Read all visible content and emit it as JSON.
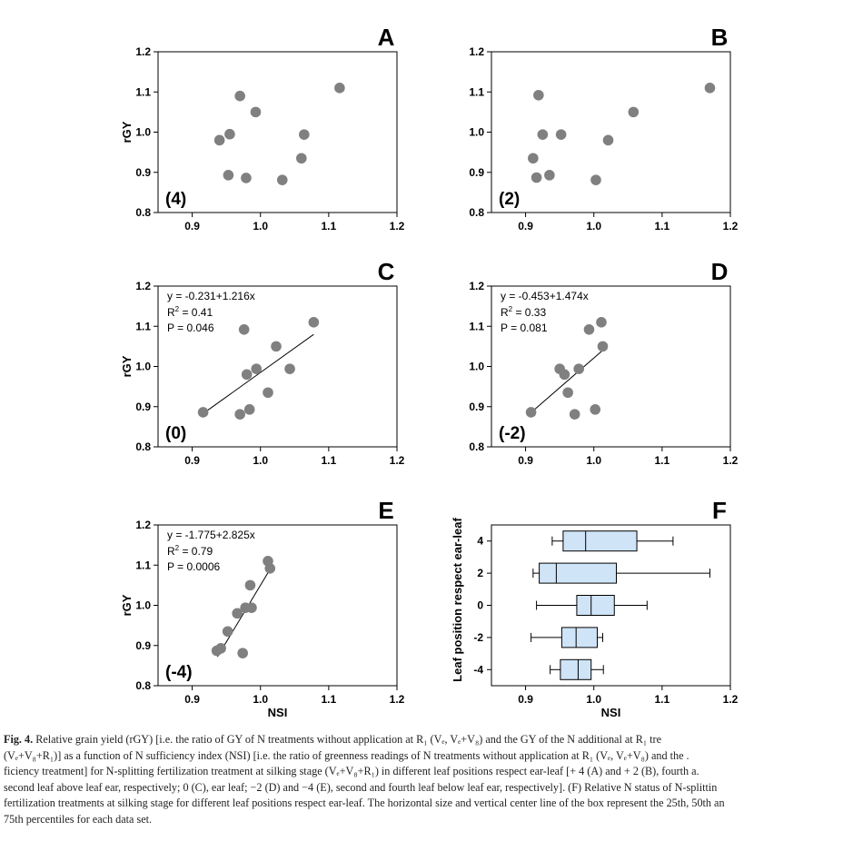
{
  "chart_data": [
    {
      "type": "scatter",
      "panel": "A",
      "annotation": "(4)",
      "ylabel": "rGY",
      "xlabel": "",
      "xlim": [
        0.85,
        1.2
      ],
      "ylim": [
        0.8,
        1.2
      ],
      "xticks": [
        "0.9",
        "1.0",
        "1.1",
        "1.2"
      ],
      "yticks": [
        "0.8",
        "0.9",
        "1.0",
        "1.1",
        "1.2"
      ],
      "points": [
        [
          0.94,
          0.98
        ],
        [
          0.955,
          0.995
        ],
        [
          0.97,
          1.09
        ],
        [
          0.953,
          0.893
        ],
        [
          0.979,
          0.886
        ],
        [
          0.993,
          1.05
        ],
        [
          1.032,
          0.881
        ],
        [
          1.06,
          0.935
        ],
        [
          1.064,
          0.994
        ],
        [
          1.116,
          1.11
        ]
      ]
    },
    {
      "type": "scatter",
      "panel": "B",
      "annotation": "(2)",
      "ylabel": "",
      "xlabel": "",
      "xlim": [
        0.85,
        1.2
      ],
      "ylim": [
        0.8,
        1.2
      ],
      "xticks": [
        "0.9",
        "1.0",
        "1.1",
        "1.2"
      ],
      "yticks": [
        "0.8",
        "0.9",
        "1.0",
        "1.1",
        "1.2"
      ],
      "points": [
        [
          0.911,
          0.935
        ],
        [
          0.916,
          0.887
        ],
        [
          0.919,
          1.092
        ],
        [
          0.925,
          0.994
        ],
        [
          0.935,
          0.893
        ],
        [
          0.952,
          0.994
        ],
        [
          1.003,
          0.881
        ],
        [
          1.021,
          0.98
        ],
        [
          1.058,
          1.05
        ],
        [
          1.17,
          1.11
        ]
      ]
    },
    {
      "type": "scatter",
      "panel": "C",
      "annotation": "(0)",
      "ylabel": "rGY",
      "xlabel": "",
      "xlim": [
        0.85,
        1.2
      ],
      "ylim": [
        0.8,
        1.2
      ],
      "xticks": [
        "0.9",
        "1.0",
        "1.1",
        "1.2"
      ],
      "yticks": [
        "0.8",
        "0.9",
        "1.0",
        "1.1",
        "1.2"
      ],
      "equation": "y = -0.231+1.216x",
      "r2_label": "R",
      "r2_value": " = 0.41",
      "p_label": "P = 0.046",
      "intercept": -0.231,
      "slope": 1.216,
      "fit_range": [
        0.916,
        1.078
      ],
      "points": [
        [
          0.916,
          0.886
        ],
        [
          0.97,
          0.881
        ],
        [
          0.976,
          1.092
        ],
        [
          0.98,
          0.98
        ],
        [
          0.984,
          0.893
        ],
        [
          0.994,
          0.994
        ],
        [
          1.011,
          0.935
        ],
        [
          1.023,
          1.05
        ],
        [
          1.043,
          0.994
        ],
        [
          1.078,
          1.11
        ]
      ]
    },
    {
      "type": "scatter",
      "panel": "D",
      "annotation": "(-2)",
      "ylabel": "",
      "xlabel": "",
      "xlim": [
        0.85,
        1.2
      ],
      "ylim": [
        0.8,
        1.2
      ],
      "xticks": [
        "0.9",
        "1.0",
        "1.1",
        "1.2"
      ],
      "yticks": [
        "0.8",
        "0.9",
        "1.0",
        "1.1",
        "1.2"
      ],
      "equation": "y = -0.453+1.474x",
      "r2_label": "R",
      "r2_value": " = 0.33",
      "p_label": "P = 0.081",
      "intercept": -0.453,
      "slope": 1.474,
      "fit_range": [
        0.908,
        1.013
      ],
      "points": [
        [
          0.908,
          0.886
        ],
        [
          0.95,
          0.994
        ],
        [
          0.957,
          0.98
        ],
        [
          0.962,
          0.935
        ],
        [
          0.972,
          0.881
        ],
        [
          0.978,
          0.994
        ],
        [
          0.993,
          1.092
        ],
        [
          1.002,
          0.893
        ],
        [
          1.011,
          1.11
        ],
        [
          1.013,
          1.05
        ]
      ]
    },
    {
      "type": "scatter",
      "panel": "E",
      "annotation": "(-4)",
      "ylabel": "rGY",
      "xlabel": "NSI",
      "xlim": [
        0.85,
        1.2
      ],
      "ylim": [
        0.8,
        1.2
      ],
      "xticks": [
        "0.9",
        "1.0",
        "1.1",
        "1.2"
      ],
      "yticks": [
        "0.8",
        "0.9",
        "1.0",
        "1.1",
        "1.2"
      ],
      "equation": "y = -1.775+2.825x",
      "r2_label": "R",
      "r2_value": " = 0.79",
      "p_label": "P = 0.0006",
      "intercept": -1.775,
      "slope": 2.825,
      "fit_range": [
        0.937,
        1.013
      ],
      "points": [
        [
          0.936,
          0.887
        ],
        [
          0.942,
          0.893
        ],
        [
          0.952,
          0.935
        ],
        [
          0.966,
          0.98
        ],
        [
          0.974,
          0.881
        ],
        [
          0.978,
          0.994
        ],
        [
          0.987,
          0.994
        ],
        [
          0.985,
          1.05
        ],
        [
          1.011,
          1.11
        ],
        [
          1.014,
          1.092
        ]
      ]
    },
    {
      "type": "boxplot",
      "panel": "F",
      "ylabel": "Leaf position respect ear-leaf",
      "xlabel": "NSI",
      "xlim": [
        0.85,
        1.2
      ],
      "xticks": [
        "0.9",
        "1.0",
        "1.1",
        "1.2"
      ],
      "categories": [
        "4",
        "2",
        "0",
        "-2",
        "-4"
      ],
      "boxes": [
        {
          "label": "4",
          "min": 0.939,
          "q1": 0.955,
          "median": 0.988,
          "q3": 1.063,
          "max": 1.116
        },
        {
          "label": "2",
          "min": 0.911,
          "q1": 0.92,
          "median": 0.945,
          "q3": 1.033,
          "max": 1.17
        },
        {
          "label": "0",
          "min": 0.916,
          "q1": 0.975,
          "median": 0.996,
          "q3": 1.03,
          "max": 1.078
        },
        {
          "label": "-2",
          "min": 0.908,
          "q1": 0.953,
          "median": 0.974,
          "q3": 1.005,
          "max": 1.013
        },
        {
          "label": "-4",
          "min": 0.936,
          "q1": 0.951,
          "median": 0.977,
          "q3": 0.996,
          "max": 1.014
        }
      ]
    }
  ],
  "caption": {
    "label": "Fig. 4.",
    "lines": [
      "Relative grain yield (rGY) [i.e. the ratio of GY of N treatments without application at R₁ (Vₑ, Vₑ+V₈) and the GY of the N additional at R₁ tre",
      "(Vₑ+V₈+R₁)] as a function of N sufficiency index (NSI) [i.e. the ratio of greenness readings of N treatments without application at R₁ (Vₑ, Vₑ+V₈) and the .",
      "ficiency treatment] for N-splitting fertilization treatment at silking stage (Vₑ+V₈+R₁) in different leaf positions respect ear-leaf [+ 4 (A) and + 2 (B), fourth a.",
      "second leaf above leaf ear, respectively; 0 (C), ear leaf; −2 (D) and −4 (E), second and fourth leaf below leaf ear, respectively]. (F) Relative N status of N-splittin",
      "fertilization treatments at silking stage for different leaf positions respect ear-leaf. The horizontal size and vertical center line of the box represent the 25th, 50th an",
      "75th percentiles for each data set."
    ]
  },
  "colors": {
    "point": "#808080",
    "box_fill": "#cfe4f7",
    "axis": "#000000"
  }
}
